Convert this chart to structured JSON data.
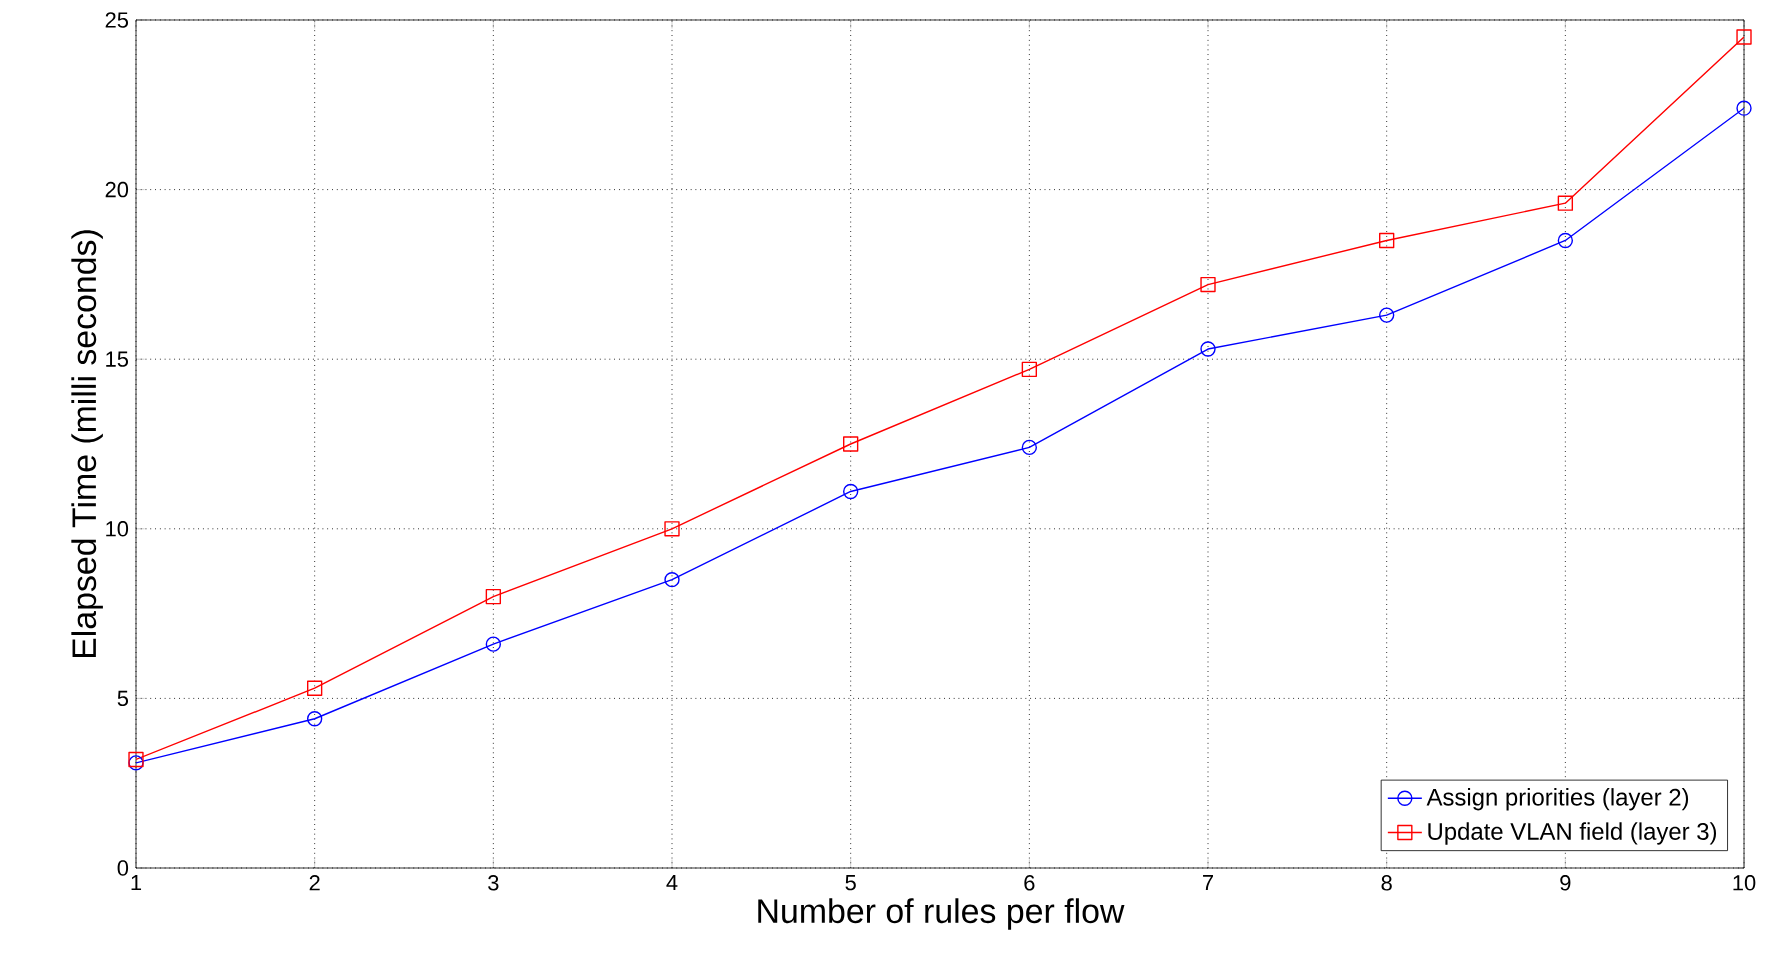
{
  "chart_data": {
    "type": "line",
    "xlabel": "Number of rules per flow",
    "ylabel": "Elapsed Time (milli seconds)",
    "x": [
      1,
      2,
      3,
      4,
      5,
      6,
      7,
      8,
      9,
      10
    ],
    "series": [
      {
        "name": "Assign priorities (layer 2)",
        "color": "#0000ff",
        "marker": "circle",
        "values": [
          3.1,
          4.4,
          6.6,
          8.5,
          11.1,
          12.4,
          15.3,
          16.3,
          18.5,
          22.4
        ]
      },
      {
        "name": "Update VLAN field (layer 3)",
        "color": "#ff0000",
        "marker": "square",
        "values": [
          3.2,
          5.3,
          8.0,
          10.0,
          12.5,
          14.7,
          17.2,
          18.5,
          19.6,
          24.5
        ]
      }
    ],
    "xlim": [
      1,
      10
    ],
    "ylim": [
      0,
      25
    ],
    "xticks": [
      1,
      2,
      3,
      4,
      5,
      6,
      7,
      8,
      9,
      10
    ],
    "yticks": [
      0,
      5,
      10,
      15,
      20,
      25
    ],
    "grid": true,
    "legend": "bottom right",
    "line_style": "solid"
  }
}
